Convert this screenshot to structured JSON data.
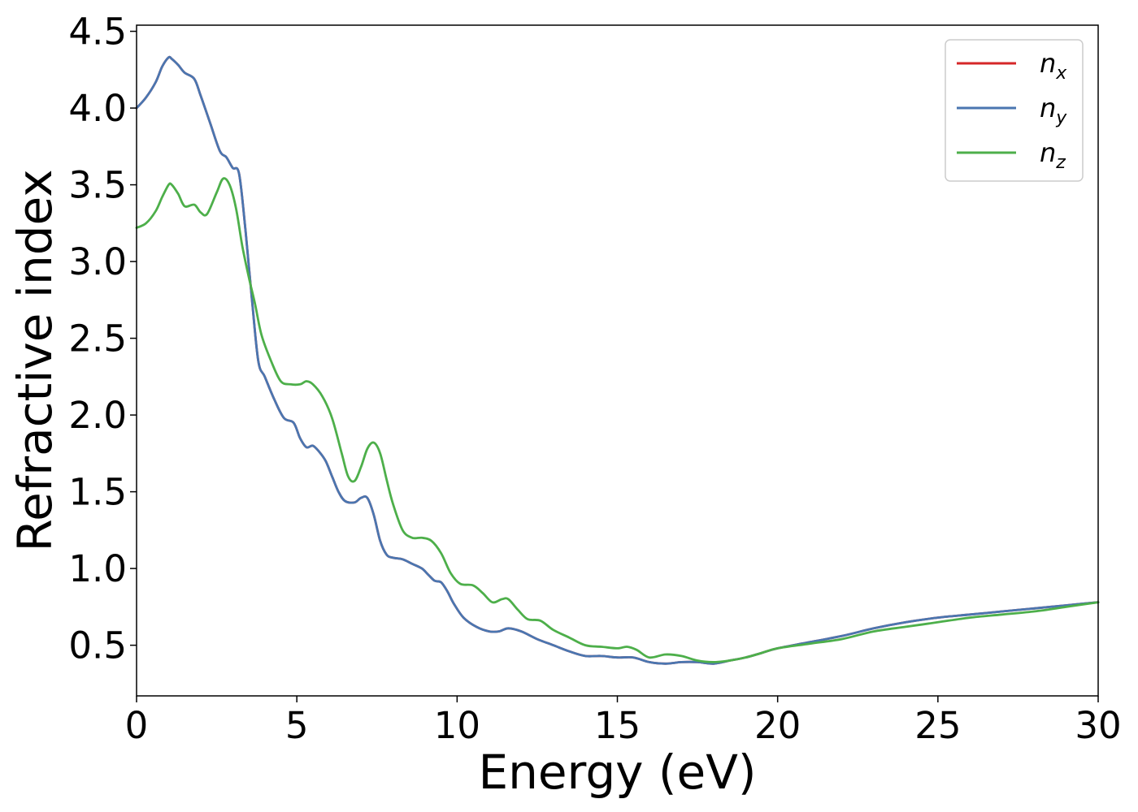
{
  "chart_data": {
    "type": "line",
    "title": "",
    "xlabel": "Energy (eV)",
    "ylabel": "Refractive index",
    "xlim": [
      0,
      30
    ],
    "ylim": [
      0.17,
      4.54
    ],
    "xticks": [
      0,
      5,
      10,
      15,
      20,
      25,
      30
    ],
    "xtick_labels": [
      "0",
      "5",
      "10",
      "15",
      "20",
      "25",
      "30"
    ],
    "yticks": [
      0.5,
      1.0,
      1.5,
      2.0,
      2.5,
      3.0,
      3.5,
      4.0,
      4.5
    ],
    "ytick_labels": [
      "0.5",
      "1.0",
      "1.5",
      "2.0",
      "2.5",
      "3.0",
      "3.5",
      "4.0",
      "4.5"
    ],
    "grid": false,
    "legend_position": "top-right",
    "series": [
      {
        "name": "n",
        "subscript": "x",
        "color": "#d62728",
        "x": [
          0,
          0.3,
          0.6,
          0.8,
          1.0,
          1.1,
          1.3,
          1.5,
          1.8,
          2.0,
          2.3,
          2.6,
          2.8,
          3.0,
          3.2,
          3.4,
          3.6,
          3.8,
          4.0,
          4.3,
          4.6,
          4.9,
          5.1,
          5.3,
          5.5,
          5.7,
          5.9,
          6.1,
          6.3,
          6.5,
          6.8,
          7.0,
          7.2,
          7.4,
          7.6,
          7.8,
          8.0,
          8.3,
          8.6,
          8.9,
          9.1,
          9.3,
          9.5,
          9.7,
          9.9,
          10.2,
          10.6,
          11.0,
          11.3,
          11.6,
          12.0,
          12.5,
          13.0,
          13.5,
          14.0,
          14.5,
          15.0,
          15.5,
          16.0,
          16.5,
          17.0,
          17.5,
          18.0,
          18.5,
          19.0,
          19.5,
          20.0,
          21.0,
          22.0,
          23.0,
          24.0,
          25.0,
          26.0,
          27.0,
          28.0,
          29.0,
          30.0
        ],
        "y": [
          4.0,
          4.07,
          4.17,
          4.27,
          4.33,
          4.32,
          4.28,
          4.23,
          4.19,
          4.08,
          3.9,
          3.72,
          3.68,
          3.61,
          3.57,
          3.2,
          2.75,
          2.35,
          2.25,
          2.1,
          1.98,
          1.95,
          1.85,
          1.79,
          1.8,
          1.76,
          1.7,
          1.6,
          1.5,
          1.44,
          1.43,
          1.46,
          1.46,
          1.35,
          1.18,
          1.09,
          1.07,
          1.06,
          1.03,
          1.0,
          0.96,
          0.92,
          0.91,
          0.85,
          0.77,
          0.68,
          0.62,
          0.59,
          0.59,
          0.61,
          0.59,
          0.54,
          0.5,
          0.46,
          0.43,
          0.43,
          0.42,
          0.42,
          0.39,
          0.38,
          0.39,
          0.39,
          0.38,
          0.4,
          0.42,
          0.45,
          0.48,
          0.52,
          0.56,
          0.61,
          0.65,
          0.68,
          0.7,
          0.72,
          0.74,
          0.76,
          0.78
        ]
      },
      {
        "name": "n",
        "subscript": "y",
        "color": "#4a76b0",
        "x": [
          0,
          0.3,
          0.6,
          0.8,
          1.0,
          1.1,
          1.3,
          1.5,
          1.8,
          2.0,
          2.3,
          2.6,
          2.8,
          3.0,
          3.2,
          3.4,
          3.6,
          3.8,
          4.0,
          4.3,
          4.6,
          4.9,
          5.1,
          5.3,
          5.5,
          5.7,
          5.9,
          6.1,
          6.3,
          6.5,
          6.8,
          7.0,
          7.2,
          7.4,
          7.6,
          7.8,
          8.0,
          8.3,
          8.6,
          8.9,
          9.1,
          9.3,
          9.5,
          9.7,
          9.9,
          10.2,
          10.6,
          11.0,
          11.3,
          11.6,
          12.0,
          12.5,
          13.0,
          13.5,
          14.0,
          14.5,
          15.0,
          15.5,
          16.0,
          16.5,
          17.0,
          17.5,
          18.0,
          18.5,
          19.0,
          19.5,
          20.0,
          21.0,
          22.0,
          23.0,
          24.0,
          25.0,
          26.0,
          27.0,
          28.0,
          29.0,
          30.0
        ],
        "y": [
          4.0,
          4.07,
          4.17,
          4.27,
          4.33,
          4.32,
          4.28,
          4.23,
          4.19,
          4.08,
          3.9,
          3.72,
          3.68,
          3.61,
          3.57,
          3.2,
          2.75,
          2.35,
          2.25,
          2.1,
          1.98,
          1.95,
          1.85,
          1.79,
          1.8,
          1.76,
          1.7,
          1.6,
          1.5,
          1.44,
          1.43,
          1.46,
          1.46,
          1.35,
          1.18,
          1.09,
          1.07,
          1.06,
          1.03,
          1.0,
          0.96,
          0.92,
          0.91,
          0.85,
          0.77,
          0.68,
          0.62,
          0.59,
          0.59,
          0.61,
          0.59,
          0.54,
          0.5,
          0.46,
          0.43,
          0.43,
          0.42,
          0.42,
          0.39,
          0.38,
          0.39,
          0.39,
          0.38,
          0.4,
          0.42,
          0.45,
          0.48,
          0.52,
          0.56,
          0.61,
          0.65,
          0.68,
          0.7,
          0.72,
          0.74,
          0.76,
          0.78
        ]
      },
      {
        "name": "n",
        "subscript": "z",
        "color": "#4daf4a",
        "x": [
          0,
          0.3,
          0.6,
          0.8,
          1.0,
          1.1,
          1.3,
          1.5,
          1.8,
          2.0,
          2.2,
          2.5,
          2.7,
          2.9,
          3.1,
          3.3,
          3.5,
          3.7,
          3.9,
          4.2,
          4.5,
          4.8,
          5.1,
          5.3,
          5.5,
          5.8,
          6.1,
          6.4,
          6.6,
          6.8,
          7.0,
          7.2,
          7.4,
          7.6,
          7.8,
          8.0,
          8.3,
          8.6,
          8.9,
          9.2,
          9.5,
          9.8,
          10.1,
          10.5,
          10.8,
          11.1,
          11.4,
          11.6,
          11.9,
          12.2,
          12.6,
          13.0,
          13.5,
          14.0,
          14.5,
          15.0,
          15.3,
          15.6,
          16.0,
          16.5,
          17.0,
          17.5,
          18.0,
          18.5,
          19.0,
          19.5,
          20.0,
          21.0,
          22.0,
          23.0,
          24.0,
          25.0,
          26.0,
          27.0,
          28.0,
          29.0,
          30.0
        ],
        "y": [
          3.22,
          3.25,
          3.33,
          3.42,
          3.5,
          3.5,
          3.44,
          3.36,
          3.37,
          3.32,
          3.31,
          3.45,
          3.54,
          3.5,
          3.35,
          3.1,
          2.9,
          2.72,
          2.52,
          2.35,
          2.22,
          2.2,
          2.2,
          2.22,
          2.2,
          2.12,
          1.98,
          1.75,
          1.6,
          1.57,
          1.66,
          1.78,
          1.82,
          1.75,
          1.58,
          1.42,
          1.25,
          1.2,
          1.2,
          1.18,
          1.1,
          0.97,
          0.9,
          0.89,
          0.84,
          0.78,
          0.8,
          0.8,
          0.73,
          0.67,
          0.66,
          0.6,
          0.55,
          0.5,
          0.49,
          0.48,
          0.49,
          0.47,
          0.42,
          0.44,
          0.43,
          0.4,
          0.39,
          0.4,
          0.42,
          0.45,
          0.48,
          0.51,
          0.54,
          0.59,
          0.62,
          0.65,
          0.68,
          0.7,
          0.72,
          0.75,
          0.78
        ]
      }
    ]
  }
}
